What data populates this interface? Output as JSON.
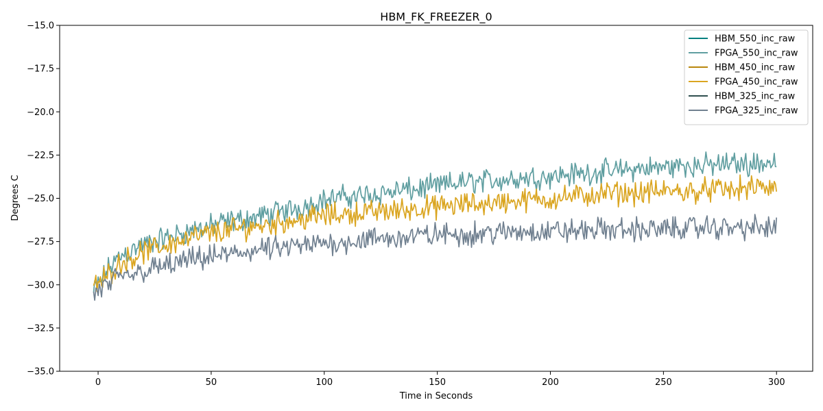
{
  "chart_data": {
    "type": "line",
    "title": "HBM_FK_FREEZER_0",
    "xlabel": "Time in Seconds",
    "ylabel": "Degrees C",
    "xlim": [
      -17,
      316
    ],
    "ylim": [
      -35.0,
      -15.0
    ],
    "xticks": [
      0,
      50,
      100,
      150,
      200,
      250,
      300
    ],
    "yticks": [
      -35.0,
      -32.5,
      -30.0,
      -27.5,
      -25.0,
      -22.5,
      -20.0,
      -17.5,
      -15.0
    ],
    "ytick_labels": [
      "−35.0",
      "−32.5",
      "−30.0",
      "−27.5",
      "−25.0",
      "−22.5",
      "−20.0",
      "−17.5",
      "−15.0"
    ],
    "xtick_labels": [
      "0",
      "50",
      "100",
      "150",
      "200",
      "250",
      "300"
    ],
    "legend_position": "top-right",
    "grid": false,
    "series": [
      {
        "name": "HBM_550_inc_raw",
        "color": "#008080",
        "x": [],
        "y": []
      },
      {
        "name": "FPGA_550_inc_raw",
        "color": "#5f9ea0",
        "x": [
          -2,
          0,
          5,
          10,
          20,
          30,
          40,
          50,
          60,
          70,
          80,
          90,
          100,
          110,
          120,
          130,
          140,
          150,
          160,
          170,
          180,
          190,
          200,
          210,
          220,
          230,
          240,
          250,
          260,
          270,
          280,
          290,
          300
        ],
        "y": [
          -30.4,
          -30.0,
          -29.0,
          -28.3,
          -27.7,
          -27.3,
          -26.9,
          -26.6,
          -26.3,
          -26.1,
          -25.8,
          -25.5,
          -25.1,
          -24.9,
          -24.8,
          -24.6,
          -24.5,
          -24.3,
          -24.1,
          -24.0,
          -23.9,
          -23.8,
          -23.7,
          -23.6,
          -23.5,
          -23.4,
          -23.3,
          -23.2,
          -23.1,
          -23.1,
          -23.0,
          -23.0,
          -22.9
        ]
      },
      {
        "name": "HBM_450_inc_raw",
        "color": "#b8860b",
        "x": [],
        "y": []
      },
      {
        "name": "FPGA_450_inc_raw",
        "color": "#daa520",
        "x": [
          -2,
          0,
          5,
          10,
          20,
          30,
          40,
          50,
          60,
          70,
          80,
          90,
          100,
          110,
          120,
          130,
          140,
          150,
          160,
          170,
          180,
          190,
          200,
          210,
          220,
          230,
          240,
          250,
          260,
          270,
          280,
          290,
          300
        ],
        "y": [
          -30.2,
          -30.0,
          -29.3,
          -28.7,
          -28.1,
          -27.7,
          -27.3,
          -27.0,
          -26.8,
          -26.6,
          -26.4,
          -26.2,
          -26.0,
          -25.9,
          -25.8,
          -25.7,
          -25.6,
          -25.5,
          -25.4,
          -25.3,
          -25.2,
          -25.1,
          -25.0,
          -24.9,
          -24.8,
          -24.7,
          -24.7,
          -24.6,
          -24.6,
          -24.5,
          -24.5,
          -24.4,
          -24.4
        ]
      },
      {
        "name": "HBM_325_inc_raw",
        "color": "#2f4f4f",
        "x": [],
        "y": []
      },
      {
        "name": "FPGA_325_inc_raw",
        "color": "#708090",
        "x": [
          -2,
          0,
          5,
          10,
          20,
          30,
          40,
          50,
          60,
          70,
          80,
          90,
          100,
          110,
          120,
          130,
          140,
          150,
          160,
          170,
          180,
          190,
          200,
          210,
          220,
          230,
          240,
          250,
          260,
          270,
          280,
          290,
          300
        ],
        "y": [
          -30.6,
          -30.4,
          -29.9,
          -29.6,
          -29.2,
          -28.9,
          -28.6,
          -28.4,
          -28.2,
          -28.0,
          -27.9,
          -27.8,
          -27.6,
          -27.5,
          -27.4,
          -27.3,
          -27.2,
          -27.1,
          -27.1,
          -27.0,
          -27.0,
          -26.9,
          -26.9,
          -26.9,
          -26.8,
          -26.8,
          -26.8,
          -26.8,
          -26.7,
          -26.7,
          -26.7,
          -26.7,
          -26.7
        ]
      }
    ]
  }
}
